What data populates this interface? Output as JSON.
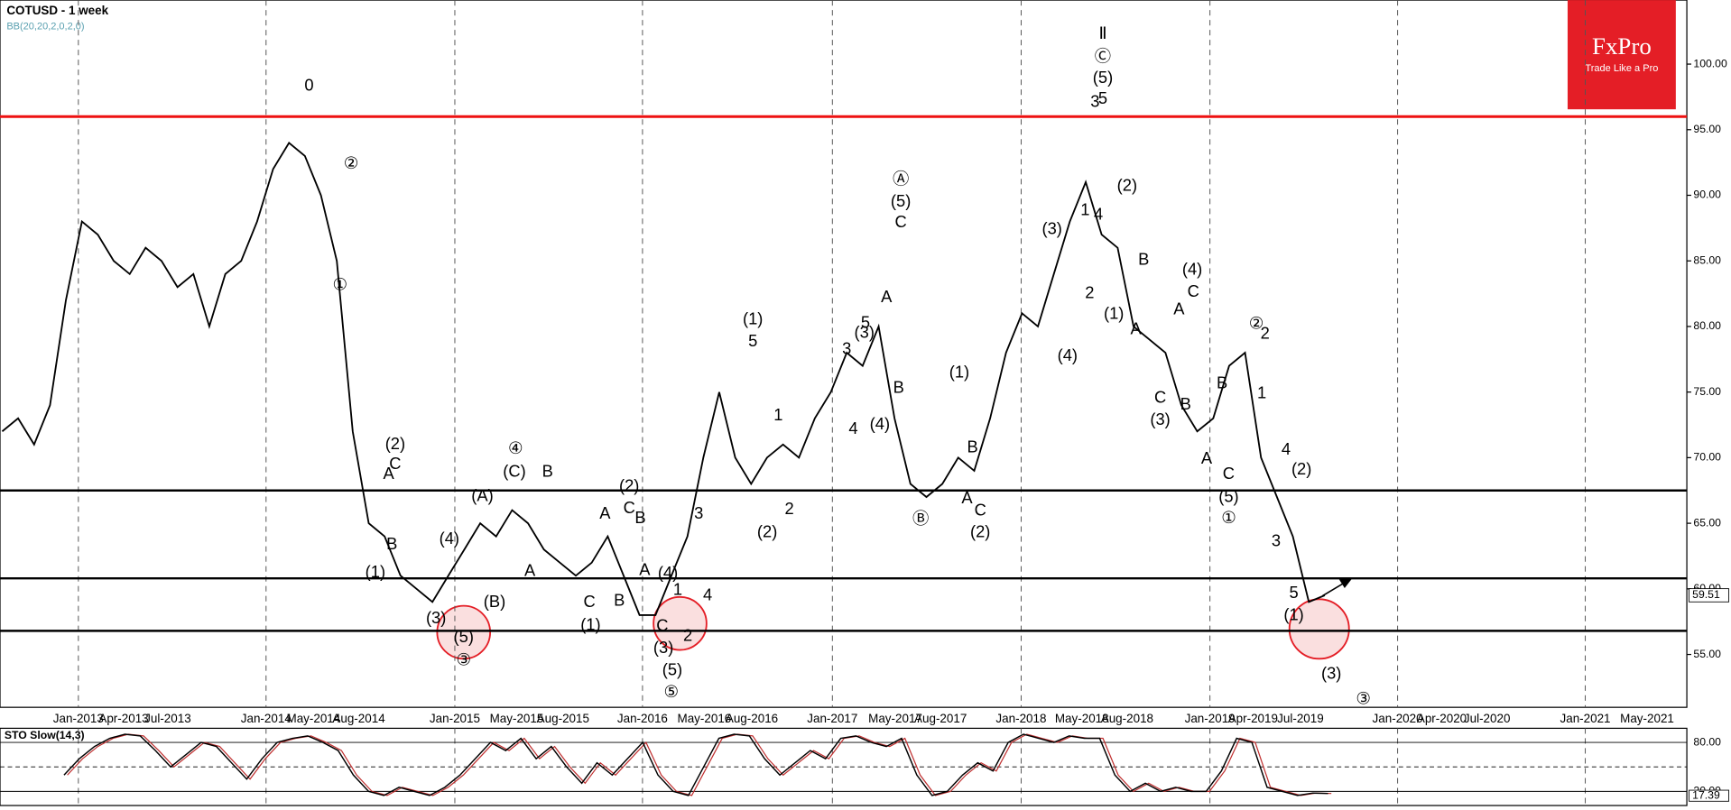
{
  "chart_data": {
    "type": "line",
    "title": "COTUSD - 1 week",
    "indicator_label": "BB(20,20,2,0,2,0)",
    "brand": "FxPro",
    "slogan": "Trade Like a Pro",
    "color": "#000000",
    "xtick_labels": [
      "Jan-2013",
      "Apr-2013",
      "Jul-2013",
      "Jan-2014",
      "May-2014",
      "Aug-2014",
      "Jan-2015",
      "May-2015",
      "Aug-2015",
      "Jan-2016",
      "May-2016",
      "Aug-2016",
      "Jan-2017",
      "May-2017",
      "Aug-2017",
      "Jan-2018",
      "May-2018",
      "Aug-2018",
      "Jan-2019",
      "Apr-2019",
      "Jul-2019",
      "Jan-2020",
      "Apr-2020",
      "Jul-2020",
      "Jan-2021",
      "May-2021"
    ],
    "values": [
      72,
      73,
      71,
      74,
      82,
      88,
      87,
      85,
      84,
      86,
      85,
      83,
      84,
      80,
      84,
      85,
      88,
      92,
      94,
      93,
      90,
      85,
      72,
      65,
      64,
      61,
      60,
      59,
      61,
      63,
      65,
      64,
      66,
      65,
      63,
      62,
      61,
      62,
      64,
      61,
      58,
      58,
      61,
      64,
      70,
      75,
      70,
      68,
      70,
      71,
      70,
      73,
      75,
      78,
      77,
      80,
      73,
      68,
      67,
      68,
      70,
      69,
      73,
      78,
      81,
      80,
      84,
      88,
      91,
      87,
      86,
      80,
      79,
      78,
      74,
      72,
      73,
      77,
      78,
      70,
      67,
      64,
      59,
      59.51
    ],
    "ylim": [
      50.97,
      104.88
    ],
    "yticks": [
      {
        "value": 55,
        "label": "55.00"
      },
      {
        "value": 60,
        "label": "60.00"
      },
      {
        "value": 65,
        "label": "65.00"
      },
      {
        "value": 70,
        "label": "70.00"
      },
      {
        "value": 75,
        "label": "75.00"
      },
      {
        "value": 80,
        "label": "80.00"
      },
      {
        "value": 85,
        "label": "85.00"
      },
      {
        "value": 90,
        "label": "90.00"
      },
      {
        "value": 95,
        "label": "95.00"
      },
      {
        "value": 100,
        "label": "100.00"
      }
    ],
    "levels": [
      {
        "value": 96,
        "color": "#ee1111"
      },
      {
        "value": 67.5,
        "color": "#000000"
      },
      {
        "value": 60.8,
        "color": "#000000"
      },
      {
        "value": 56.8,
        "color": "#000000"
      }
    ],
    "annotations": [
      "0",
      "②",
      "①",
      "(2)",
      "A",
      "C",
      "B",
      "(1)",
      "(4)",
      "(3)",
      "(5)",
      "③",
      "(A)",
      "(B)",
      "A",
      "④",
      "(C)",
      "B",
      "(2)",
      "C",
      "B",
      "A",
      "C",
      "(1)",
      "B",
      "A",
      "(4)",
      "1",
      "(3)",
      "C",
      "2",
      "(5)",
      "⑤",
      "4",
      "3",
      "(1)",
      "5",
      "1",
      "2",
      "(2)",
      "3",
      "4",
      "(3)",
      "5",
      "A",
      "(4)",
      "B",
      "Ⓐ",
      "(5)",
      "C",
      "(1)",
      "B",
      "A",
      "C",
      "(2)",
      "Ⓑ",
      "(3)",
      "1",
      "4",
      "2",
      "(4)",
      "3",
      "5",
      "(5)",
      "Ⓒ",
      "Ⅱ",
      "(2)",
      "B",
      "(1)",
      "A",
      "(4)",
      "C",
      "A",
      "C",
      "(3)",
      "B",
      "B",
      "A",
      "C",
      "(5)",
      "①",
      "②",
      "2",
      "1",
      "4",
      "(2)",
      "3",
      "5",
      "(1)",
      "(3)",
      "③"
    ],
    "stochastic": {
      "title": "STO Slow(14,3)",
      "color": "#000000",
      "ylim": [
        0,
        100
      ],
      "yticks": [
        {
          "value": 80,
          "label": "80.00"
        },
        {
          "value": 20,
          "label": "20.00"
        }
      ],
      "values": [
        40,
        60,
        75,
        85,
        90,
        88,
        70,
        50,
        65,
        80,
        75,
        55,
        35,
        60,
        80,
        85,
        88,
        80,
        70,
        40,
        20,
        15,
        25,
        20,
        15,
        25,
        40,
        60,
        80,
        70,
        85,
        60,
        75,
        50,
        30,
        55,
        40,
        60,
        80,
        40,
        20,
        15,
        50,
        85,
        90,
        88,
        60,
        40,
        55,
        70,
        60,
        85,
        88,
        80,
        75,
        85,
        40,
        15,
        20,
        40,
        55,
        45,
        80,
        90,
        85,
        80,
        88,
        85,
        85,
        40,
        20,
        30,
        20,
        25,
        20,
        20,
        45,
        85,
        80,
        25,
        20,
        15,
        18,
        17.39
      ]
    }
  }
}
